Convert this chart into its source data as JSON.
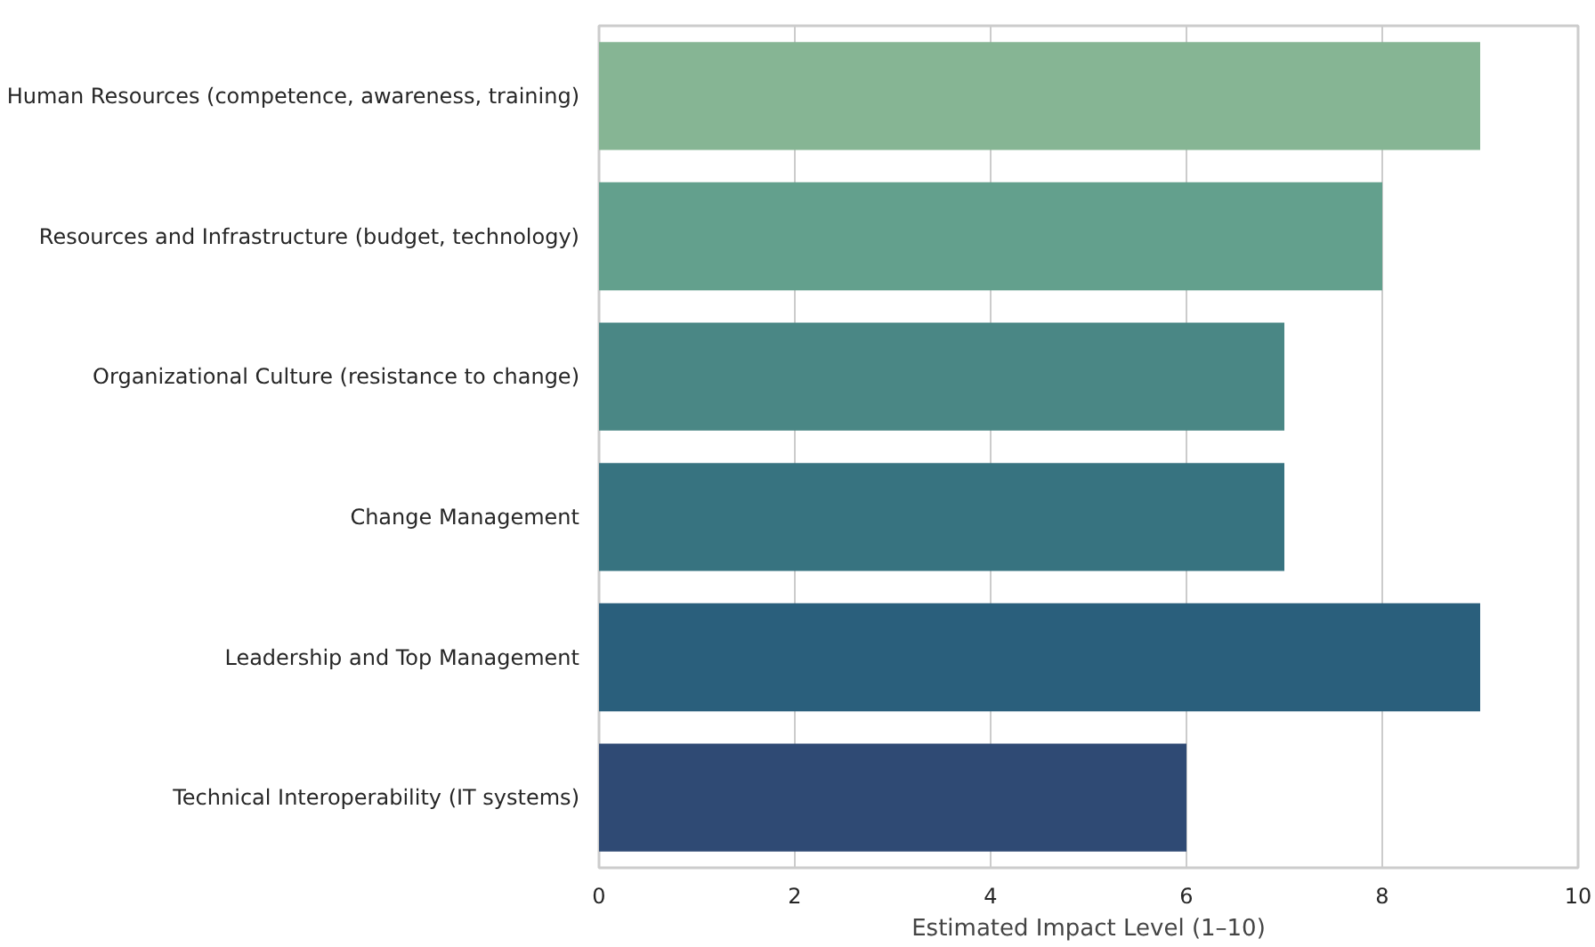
{
  "chart_data": {
    "type": "bar",
    "orientation": "horizontal",
    "xlabel": "Estimated Impact Level (1–10)",
    "categories": [
      "Human Resources (competence, awareness, training)",
      "Resources and Infrastructure (budget, technology)",
      "Organizational Culture (resistance to change)",
      "Change Management",
      "Leadership and Top Management",
      "Technical Interoperability (IT systems)"
    ],
    "values": [
      9,
      8,
      7,
      7,
      9,
      6
    ],
    "colors": [
      "#86b594",
      "#63a08d",
      "#4a8785",
      "#377380",
      "#2a5f7c",
      "#2f4a74"
    ],
    "xlim": [
      0,
      10
    ],
    "xticks": [
      0,
      2,
      4,
      6,
      8,
      10
    ],
    "grid": "x"
  }
}
